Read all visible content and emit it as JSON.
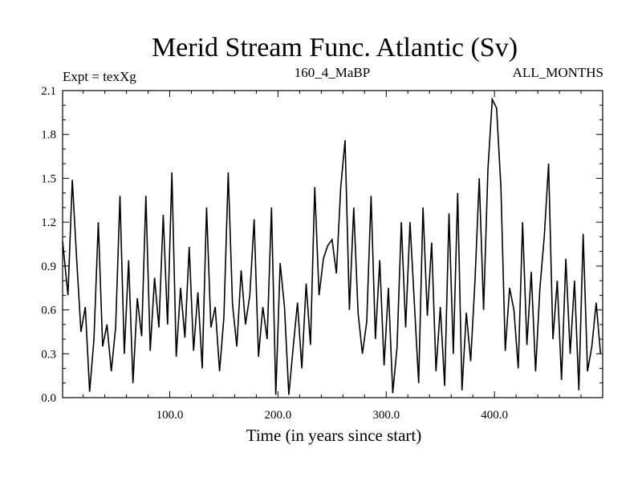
{
  "chart_data": {
    "type": "line",
    "title": "Merid Stream Func. Atlantic (Sv)",
    "header_left": "Expt = texXg",
    "header_center": "160_4_MaBP",
    "header_right": "ALL_MONTHS",
    "xlabel": "Time (in years since start)",
    "ylabel": "",
    "xlim": [
      1,
      500
    ],
    "ylim": [
      0.0,
      2.1
    ],
    "xticks": [
      100,
      200,
      300,
      400
    ],
    "xtick_labels": [
      "100.0",
      "200.0",
      "300.0",
      "400.0"
    ],
    "yticks": [
      0.0,
      0.3,
      0.6,
      0.9,
      1.2,
      1.5,
      1.8,
      2.1
    ],
    "ytick_labels": [
      "0.0",
      "0.3",
      "0.6",
      "0.9",
      "1.2",
      "1.5",
      "1.8",
      "2.1"
    ],
    "grid": false,
    "series": [
      {
        "color": "#000000",
        "x": [
          1,
          6,
          10,
          14,
          18,
          22,
          26,
          30,
          34,
          38,
          42,
          46,
          50,
          54,
          58,
          62,
          66,
          70,
          74,
          78,
          82,
          86,
          90,
          94,
          98,
          102,
          106,
          110,
          114,
          118,
          122,
          126,
          130,
          134,
          138,
          142,
          146,
          150,
          154,
          158,
          162,
          166,
          170,
          174,
          178,
          182,
          186,
          190,
          194,
          198,
          202,
          206,
          210,
          214,
          218,
          222,
          226,
          230,
          234,
          238,
          242,
          246,
          250,
          254,
          258,
          262,
          266,
          270,
          274,
          278,
          282,
          286,
          290,
          294,
          298,
          302,
          306,
          310,
          314,
          318,
          322,
          326,
          330,
          334,
          338,
          342,
          346,
          350,
          354,
          358,
          362,
          366,
          370,
          374,
          378,
          382,
          386,
          390,
          394,
          398,
          402,
          406,
          410,
          414,
          418,
          422,
          426,
          430,
          434,
          438,
          442,
          446,
          450,
          454,
          458,
          462,
          466,
          470,
          474,
          478,
          482,
          486,
          490,
          494,
          498
        ],
        "y": [
          1.07,
          0.7,
          1.49,
          0.95,
          0.45,
          0.62,
          0.04,
          0.4,
          1.2,
          0.35,
          0.5,
          0.18,
          0.48,
          1.38,
          0.3,
          0.94,
          0.1,
          0.68,
          0.42,
          1.38,
          0.32,
          0.82,
          0.48,
          1.25,
          0.5,
          1.54,
          0.28,
          0.75,
          0.41,
          1.03,
          0.32,
          0.72,
          0.2,
          1.3,
          0.48,
          0.62,
          0.18,
          0.55,
          1.54,
          0.64,
          0.35,
          0.87,
          0.5,
          0.7,
          1.22,
          0.28,
          0.62,
          0.4,
          1.3,
          0.02,
          0.92,
          0.62,
          0.02,
          0.34,
          0.65,
          0.2,
          0.78,
          0.36,
          1.44,
          0.7,
          0.95,
          1.04,
          1.08,
          0.85,
          1.44,
          1.76,
          0.6,
          1.3,
          0.58,
          0.3,
          0.52,
          1.38,
          0.4,
          0.94,
          0.22,
          0.75,
          0.03,
          0.34,
          1.2,
          0.48,
          1.2,
          0.65,
          0.1,
          1.3,
          0.56,
          1.06,
          0.18,
          0.62,
          0.08,
          1.26,
          0.3,
          1.4,
          0.05,
          0.58,
          0.25,
          0.8,
          1.5,
          0.6,
          1.56,
          2.04,
          1.98,
          1.44,
          0.32,
          0.75,
          0.6,
          0.2,
          1.2,
          0.36,
          0.86,
          0.18,
          0.75,
          1.1,
          1.6,
          0.4,
          0.8,
          0.12,
          0.95,
          0.3,
          0.8,
          0.05,
          1.12,
          0.18,
          0.35,
          0.65,
          0.3
        ]
      }
    ]
  }
}
